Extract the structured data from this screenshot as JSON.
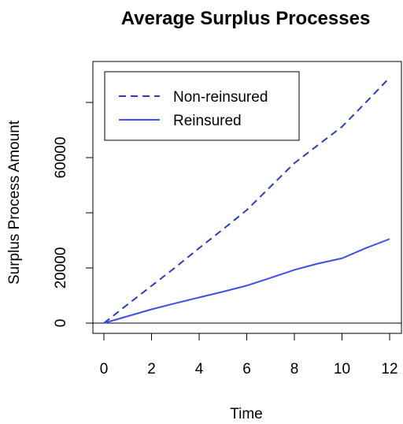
{
  "chart_data": {
    "type": "line",
    "title": "Average Surplus Processes",
    "xlabel": "Time",
    "ylabel": "Surplus Process Amount",
    "x": [
      0,
      1,
      2,
      3,
      4,
      5,
      6,
      7,
      8,
      9,
      10,
      11,
      12
    ],
    "xlim": [
      0,
      12
    ],
    "ylim": [
      0,
      80000
    ],
    "xticks": [
      0,
      2,
      4,
      6,
      8,
      10,
      12
    ],
    "xtick_labels": [
      "0",
      "2",
      "4",
      "6",
      "8",
      "10",
      "12"
    ],
    "yticks": [
      0,
      20000,
      40000,
      60000,
      80000
    ],
    "ytick_labels": [
      "0",
      "20000",
      "",
      "60000",
      ""
    ],
    "hline_y": 0,
    "grid": false,
    "legend_position": "top-left",
    "series": [
      {
        "name": "Non-reinsured",
        "line_style": "dashed",
        "color": "#2a3cc0",
        "values": [
          0,
          6800,
          13500,
          20200,
          27200,
          34000,
          41000,
          49500,
          58000,
          64600,
          71200,
          80000,
          89000
        ]
      },
      {
        "name": "Reinsured",
        "line_style": "solid",
        "color": "#3b4ef0",
        "values": [
          0,
          2500,
          5000,
          7200,
          9300,
          11400,
          13600,
          16400,
          19300,
          21600,
          23500,
          27200,
          30500
        ]
      }
    ]
  }
}
